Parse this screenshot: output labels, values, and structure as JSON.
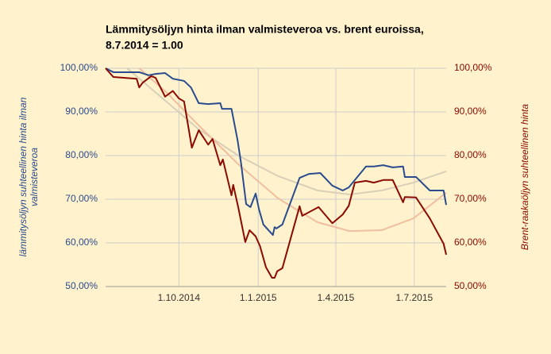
{
  "chart_data": {
    "type": "line",
    "title": [
      "Lämmitysöljyn hinta ilman valmisteveroa vs. brent euroissa,",
      "8.7.2014 = 1.00"
    ],
    "y_label": [
      "lämmitysöljyn suhteellinen hinta ilman",
      "valmisteveroa"
    ],
    "y2_label": "Brent-raakaöljyn suhteellinen hinta",
    "xlim": [
      "8.7.2014",
      "7.8.2015"
    ],
    "xticks": [
      "1.10.2014",
      "1.1.2015",
      "1.4.2015",
      "1.7.2015"
    ],
    "ylim": [
      50,
      100
    ],
    "yticks": [
      {
        "value": 50,
        "label": "50,00%"
      },
      {
        "value": 60,
        "label": "60,00%"
      },
      {
        "value": 70,
        "label": "70,00%"
      },
      {
        "value": 80,
        "label": "80,00%"
      },
      {
        "value": 90,
        "label": "90,00%"
      },
      {
        "value": 100,
        "label": "100,00%"
      }
    ],
    "y2lim": [
      50,
      100
    ],
    "y2ticks": [
      {
        "value": 50,
        "label": "50,00%"
      },
      {
        "value": 60,
        "label": "60,00%"
      },
      {
        "value": 70,
        "label": "70,00%"
      },
      {
        "value": 80,
        "label": "80,00%"
      },
      {
        "value": 90,
        "label": "90,00%"
      },
      {
        "value": 100,
        "label": "100,00%"
      }
    ],
    "grid": true,
    "series": [
      {
        "color": "#2a4b8d",
        "x": [
          "8.7.2014",
          "17.7.2014",
          "16.8.2014",
          "27.8.2014",
          "4.9.2014",
          "15.9.2014",
          "24.9.2014",
          "7.10.2014",
          "15.10.2014",
          "24.10.2014",
          "4.11.2014",
          "18.11.2014",
          "20.11.2014",
          "1.12.2014",
          "8.12.2014",
          "12.12.2014",
          "18.12.2014",
          "23.12.2014",
          "29.12.2014",
          "2.1.2015",
          "7.1.2015",
          "18.1.2015",
          "20.1.2015",
          "22.1.2015",
          "29.1.2015",
          "18.2.2015",
          "1.3.2015",
          "14.3.2015",
          "28.3.2015",
          "9.4.2015",
          "16.4.2015",
          "6.5.2015",
          "15.5.2015",
          "26.5.2015",
          "6.6.2015",
          "18.6.2015",
          "20.6.2015",
          "3.7.2015",
          "19.7.2015",
          "4.8.2015",
          "7.8.2015"
        ],
        "values": [
          100,
          99.1,
          99.1,
          98.4,
          98.7,
          98.9,
          97.6,
          97.1,
          95.6,
          92,
          91.8,
          92,
          90.7,
          90.7,
          83.6,
          78.4,
          68.9,
          68.2,
          71.3,
          67.6,
          64.2,
          61.8,
          63.6,
          63.3,
          64.2,
          74.9,
          75.8,
          76,
          73.1,
          72,
          72.7,
          77.5,
          77.5,
          77.8,
          77.3,
          77.5,
          75.1,
          75.1,
          72,
          72,
          68.7
        ]
      },
      {
        "color": "#8b0a00",
        "axis": "y2",
        "x": [
          "8.7.2014",
          "17.7.2014",
          "13.8.2014",
          "16.8.2014",
          "20.8.2014",
          "30.8.2014",
          "4.9.2014",
          "15.9.2014",
          "24.9.2014",
          "1.10.2014",
          "7.10.2014",
          "16.10.2014",
          "24.10.2014",
          "4.11.2014",
          "9.11.2014",
          "18.11.2014",
          "21.11.2014",
          "1.12.2014",
          "3.12.2014",
          "9.12.2014",
          "17.12.2014",
          "22.12.2014",
          "29.12.2014",
          "3.1.2015",
          "10.1.2015",
          "17.1.2015",
          "20.1.2015",
          "23.1.2015",
          "29.1.2015",
          "18.2.2015",
          "21.2.2015",
          "12.3.2015",
          "28.3.2015",
          "9.4.2015",
          "16.4.2015",
          "23.4.2015",
          "6.5.2015",
          "15.5.2015",
          "26.5.2015",
          "6.6.2015",
          "18.6.2015",
          "20.6.2015",
          "3.7.2015",
          "19.7.2015",
          "4.8.2015",
          "7.8.2015"
        ],
        "values": [
          100,
          98,
          97.6,
          95.6,
          96.7,
          98.2,
          97.8,
          93.5,
          94.8,
          93.1,
          92.4,
          81.8,
          85.8,
          82.5,
          83.8,
          77.8,
          79.1,
          70.9,
          73.3,
          68,
          60.2,
          62.9,
          61.5,
          59.3,
          54.4,
          52,
          52,
          53.5,
          54.2,
          68.4,
          66.2,
          68.2,
          64.5,
          66.5,
          68.5,
          73.8,
          74.2,
          73.8,
          74.4,
          74.4,
          69.3,
          70.5,
          70.4,
          65.6,
          59.8,
          57.3
        ]
      }
    ],
    "trendlines": [
      {
        "color": "#d9cfb8",
        "x": [
          "2.8.2014",
          "8.9.2014",
          "24.10.2014",
          "9.12.2014",
          "24.1.2015",
          "11.3.2015",
          "17.4.2015",
          "24.5.2015",
          "30.6.2015",
          "7.8.2015"
        ],
        "values": [
          100,
          93.8,
          86,
          80,
          75.3,
          72,
          71.1,
          72,
          73.8,
          76.4
        ]
      },
      {
        "color": "#f0bfa0",
        "axis": "y2",
        "x": [
          "16.8.2014",
          "17.9.2014",
          "24.10.2014",
          "9.12.2014",
          "24.1.2015",
          "11.3.2015",
          "17.4.2015",
          "24.5.2015",
          "30.6.2015",
          "7.8.2015"
        ],
        "values": [
          100,
          94.4,
          86.9,
          78,
          70.2,
          64.7,
          62.7,
          62.9,
          65.6,
          71.5
        ]
      }
    ]
  }
}
